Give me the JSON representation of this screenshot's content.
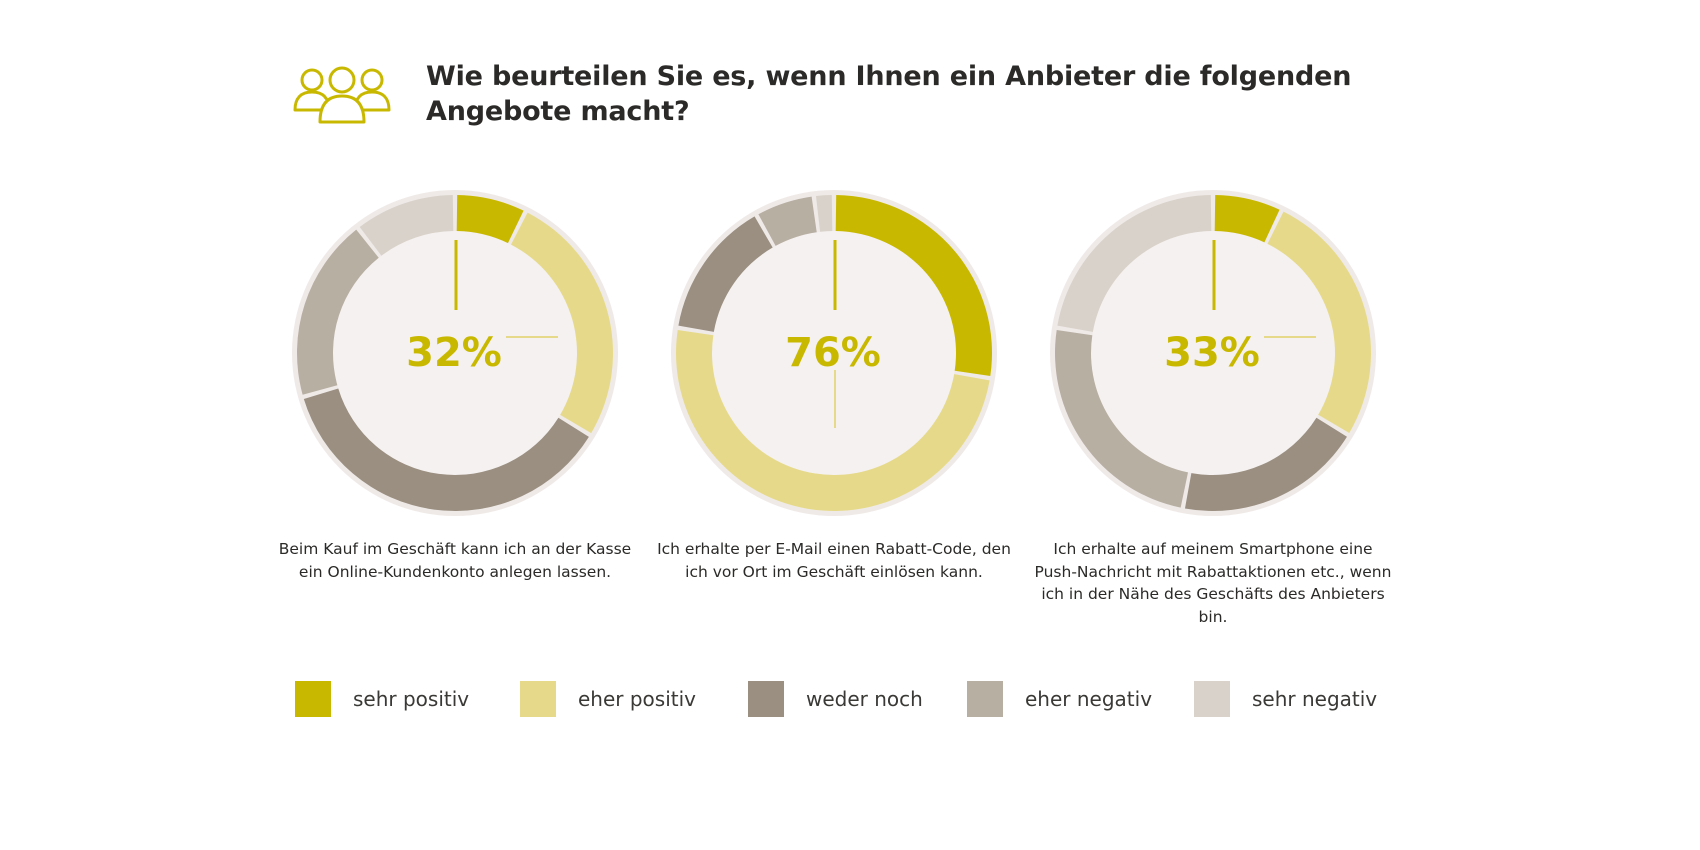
{
  "header": {
    "icon": "people-group-icon",
    "title": "Wie beurteilen Sie es, wenn Ihnen ein Anbieter die folgenden Angebote macht?"
  },
  "colors": {
    "sehr_positiv": "#c9b800",
    "eher_positiv": "#e6da8a",
    "weder_noch": "#9a8f80",
    "eher_negativ": "#b8afa3",
    "sehr_negativ": "#d9d2ca",
    "center_fill": "#f5f1f0",
    "ring_bg": "#efeae8",
    "accent_text": "#c9b800",
    "indicator": "#c9b800",
    "indicator_light": "#e6da8a"
  },
  "chart_data": [
    {
      "type": "pie",
      "variant": "donut",
      "center_label": "32%",
      "caption": "Beim Kauf im Geschäft kann ich an der Kasse ein Online-Kundenkonto anlegen lassen.",
      "categories": [
        "sehr positiv",
        "eher positiv",
        "weder noch",
        "eher negativ",
        "sehr negativ"
      ],
      "values": [
        7,
        25,
        35,
        18,
        10
      ]
    },
    {
      "type": "pie",
      "variant": "donut",
      "center_label": "76%",
      "caption": "Ich erhalte per E-Mail einen Rabatt-Code, den ich vor Ort im Geschäft einlösen kann.",
      "categories": [
        "sehr positiv",
        "eher positiv",
        "weder noch",
        "eher negativ",
        "sehr negativ"
      ],
      "values": [
        27,
        49,
        14,
        6,
        2
      ]
    },
    {
      "type": "pie",
      "variant": "donut",
      "center_label": "33%",
      "caption": "Ich erhalte auf meinem Smartphone eine Push-Nachricht mit Rabattaktionen etc., wenn ich in der Nähe des Geschäfts des Anbieters bin.",
      "categories": [
        "sehr positiv",
        "eher positiv",
        "weder noch",
        "eher negativ",
        "sehr negativ"
      ],
      "values": [
        7,
        26,
        19,
        24,
        22
      ]
    }
  ],
  "legend": {
    "items": [
      {
        "label": "sehr positiv",
        "color": "#c9b800"
      },
      {
        "label": "eher positiv",
        "color": "#e6da8a"
      },
      {
        "label": "weder noch",
        "color": "#9a8f80"
      },
      {
        "label": "eher negativ",
        "color": "#b8afa3"
      },
      {
        "label": "sehr negativ",
        "color": "#d9d2ca"
      }
    ]
  }
}
